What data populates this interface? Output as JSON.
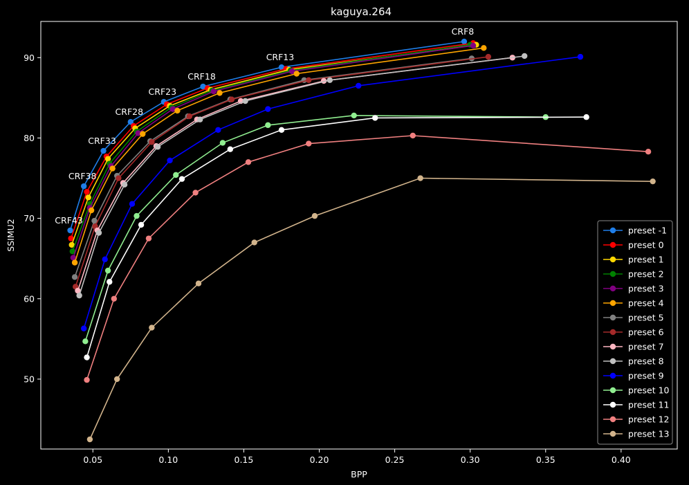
{
  "chart_data": {
    "type": "line",
    "title": "kaguya.264",
    "xlabel": "BPP",
    "ylabel": "SSIMU2",
    "xlim": [
      0.0155,
      0.4372
    ],
    "ylim": [
      41.3,
      94.5
    ],
    "xticks": [
      0.05,
      0.1,
      0.15,
      0.2,
      0.25,
      0.3,
      0.35,
      0.4
    ],
    "xtick_labels": [
      "0.05",
      "0.10",
      "0.15",
      "0.20",
      "0.25",
      "0.30",
      "0.35",
      "0.40"
    ],
    "yticks": [
      50,
      60,
      70,
      80,
      90
    ],
    "ytick_labels": [
      "50",
      "60",
      "70",
      "80",
      "90"
    ],
    "grid": false,
    "legend_position": "bottom-right",
    "background": "#000000",
    "crf_labels": [
      "CRF43",
      "CRF38",
      "CRF33",
      "CRF28",
      "CRF23",
      "CRF18",
      "CRF13",
      "CRF8"
    ],
    "series": [
      {
        "name": "preset -1",
        "color": "#1f7ee8",
        "x": [
          0.035,
          0.044,
          0.057,
          0.075,
          0.097,
          0.123,
          0.175,
          0.296
        ],
        "y": [
          68.5,
          74.0,
          78.4,
          82.0,
          84.5,
          86.4,
          88.8,
          92.0
        ]
      },
      {
        "name": "preset 0",
        "color": "#ff0000",
        "x": [
          0.0355,
          0.046,
          0.059,
          0.077,
          0.099,
          0.126,
          0.178,
          0.302
        ],
        "y": [
          67.5,
          73.3,
          77.7,
          81.5,
          84.2,
          86.2,
          88.6,
          91.8
        ]
      },
      {
        "name": "preset 1",
        "color": "#ffd700",
        "x": [
          0.036,
          0.047,
          0.06,
          0.078,
          0.101,
          0.128,
          0.18,
          0.304
        ],
        "y": [
          66.7,
          72.6,
          77.4,
          81.2,
          84.0,
          86.0,
          88.5,
          91.6
        ]
      },
      {
        "name": "preset 2",
        "color": "#008000",
        "x": [
          0.0365,
          0.048,
          0.061,
          0.079,
          0.102,
          0.129,
          0.181,
          0.3
        ],
        "y": [
          65.9,
          71.8,
          76.8,
          80.8,
          83.8,
          85.9,
          88.4,
          91.6
        ]
      },
      {
        "name": "preset 3",
        "color": "#800080",
        "x": [
          0.037,
          0.048,
          0.062,
          0.08,
          0.103,
          0.13,
          0.182,
          0.302
        ],
        "y": [
          65.1,
          71.3,
          76.5,
          80.6,
          83.6,
          85.8,
          88.3,
          91.5
        ]
      },
      {
        "name": "preset 4",
        "color": "#ffa500",
        "x": [
          0.038,
          0.049,
          0.063,
          0.083,
          0.106,
          0.134,
          0.185,
          0.309
        ],
        "y": [
          64.5,
          71.0,
          76.2,
          80.5,
          83.4,
          85.6,
          88.0,
          91.2
        ]
      },
      {
        "name": "preset 5",
        "color": "#808080",
        "x": [
          0.038,
          0.051,
          0.066,
          0.088,
          0.113,
          0.141,
          0.19,
          0.301
        ],
        "y": [
          62.7,
          69.7,
          75.3,
          79.6,
          82.7,
          84.8,
          87.2,
          89.9
        ]
      },
      {
        "name": "preset 6",
        "color": "#a52a2a",
        "x": [
          0.0385,
          0.0515,
          0.067,
          0.089,
          0.114,
          0.142,
          0.193,
          0.312
        ],
        "y": [
          61.5,
          69.0,
          75.0,
          79.5,
          82.7,
          84.8,
          87.2,
          90.1
        ]
      },
      {
        "name": "preset 7",
        "color": "#ffb6c1",
        "x": [
          0.04,
          0.053,
          0.07,
          0.092,
          0.119,
          0.148,
          0.203,
          0.328
        ],
        "y": [
          61.0,
          68.5,
          74.4,
          79.0,
          82.3,
          84.6,
          87.1,
          90.0
        ]
      },
      {
        "name": "preset 8",
        "color": "#c0c0c0",
        "x": [
          0.041,
          0.054,
          0.071,
          0.093,
          0.121,
          0.151,
          0.207,
          0.336
        ],
        "y": [
          60.4,
          68.2,
          74.2,
          78.9,
          82.3,
          84.6,
          87.2,
          90.2
        ]
      },
      {
        "name": "preset 9",
        "color": "#0000ff",
        "x": [
          0.044,
          0.058,
          0.076,
          0.101,
          0.133,
          0.166,
          0.226,
          0.373
        ],
        "y": [
          56.3,
          64.9,
          71.8,
          77.2,
          81.0,
          83.6,
          86.5,
          90.1
        ]
      },
      {
        "name": "preset 10",
        "color": "#90ee90",
        "x": [
          0.045,
          0.06,
          0.079,
          0.105,
          0.136,
          0.166,
          0.223,
          0.35
        ],
        "y": [
          54.7,
          63.5,
          70.3,
          75.4,
          79.4,
          81.6,
          82.8,
          82.6
        ]
      },
      {
        "name": "preset 11",
        "color": "#ffffff",
        "x": [
          0.046,
          0.061,
          0.082,
          0.109,
          0.141,
          0.175,
          0.237,
          0.377
        ],
        "y": [
          52.7,
          62.1,
          69.2,
          74.9,
          78.6,
          81.0,
          82.5,
          82.6
        ]
      },
      {
        "name": "preset 12",
        "color": "#f08080",
        "x": [
          0.046,
          0.064,
          0.087,
          0.118,
          0.153,
          0.193,
          0.262,
          0.418
        ],
        "y": [
          49.9,
          60.0,
          67.5,
          73.2,
          77.0,
          79.3,
          80.3,
          78.3
        ]
      },
      {
        "name": "preset 13",
        "color": "#d2b48c",
        "x": [
          0.048,
          0.066,
          0.089,
          0.12,
          0.157,
          0.197,
          0.267,
          0.421
        ],
        "y": [
          42.5,
          50.0,
          56.4,
          61.9,
          67.0,
          70.3,
          75.0,
          74.6
        ]
      }
    ]
  }
}
